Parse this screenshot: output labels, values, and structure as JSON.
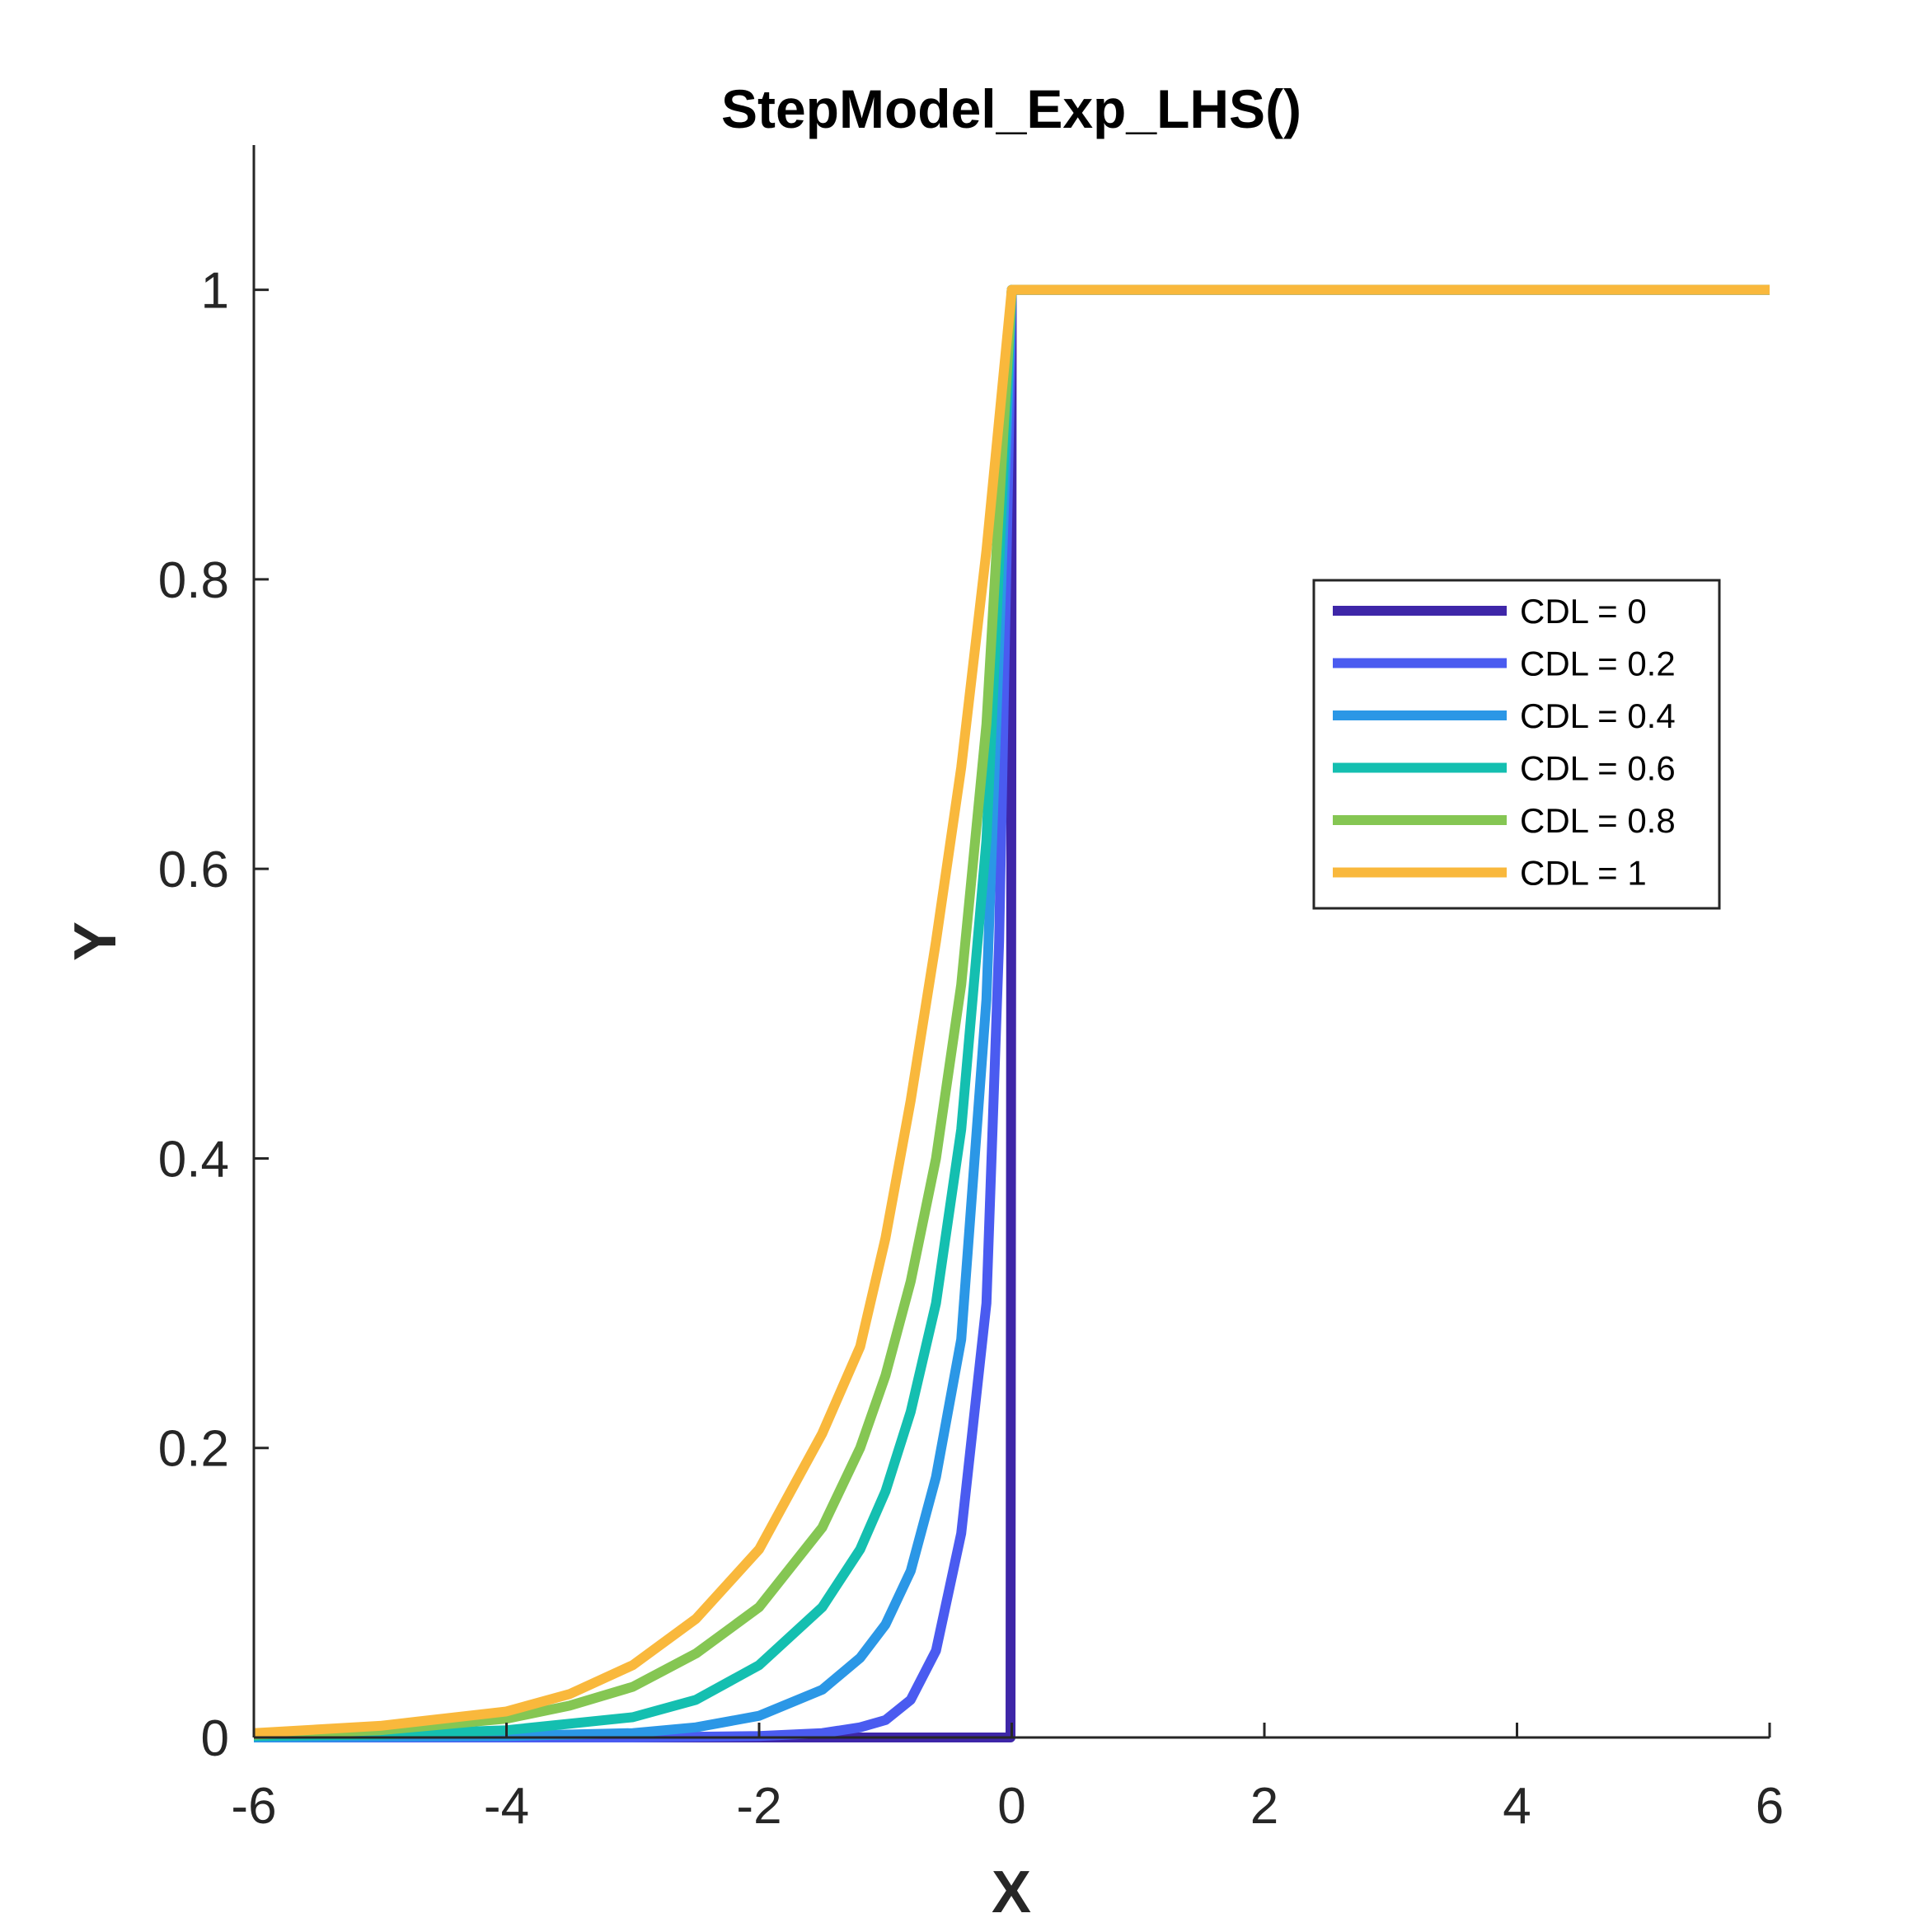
{
  "chart_data": {
    "type": "line",
    "title": "StepModel_Exp_LHS()",
    "xlabel": "X",
    "ylabel": "Y",
    "xlim": [
      -6,
      6
    ],
    "ylim": [
      0,
      1.1
    ],
    "xticks": [
      "-6",
      "-4",
      "-2",
      "0",
      "2",
      "4",
      "6"
    ],
    "yticks": [
      "0",
      "0.2",
      "0.4",
      "0.6",
      "0.8",
      "1"
    ],
    "xtick_values": [
      -6,
      -4,
      -2,
      0,
      2,
      4,
      6
    ],
    "ytick_values": [
      0,
      0.2,
      0.4,
      0.6,
      0.8,
      1
    ],
    "grid": false,
    "legend_position": "top-right",
    "series": [
      {
        "name": "CDL = 0",
        "color": "#3e26a8",
        "x": [
          -6,
          -5,
          -4,
          -3,
          -2,
          -1,
          -0.5,
          -0.01,
          0,
          0.01,
          2,
          4,
          6
        ],
        "y": [
          0,
          0,
          0,
          0,
          0,
          0,
          0,
          0,
          1,
          1,
          1,
          1,
          1
        ]
      },
      {
        "name": "CDL = 0.2",
        "color": "#4a5bf0",
        "x": [
          -6,
          -3,
          -2,
          -1.5,
          -1.2,
          -1,
          -0.8,
          -0.6,
          -0.4,
          -0.2,
          -0.1,
          0,
          1,
          2,
          3,
          4,
          5,
          6
        ],
        "y": [
          0,
          0,
          0.001,
          0.003,
          0.007,
          0.012,
          0.026,
          0.06,
          0.141,
          0.3,
          0.55,
          1,
          1,
          1,
          1,
          1,
          1,
          1
        ]
      },
      {
        "name": "CDL = 0.4",
        "color": "#2b97e6",
        "x": [
          -6,
          -4,
          -3,
          -2.5,
          -2,
          -1.5,
          -1.2,
          -1,
          -0.8,
          -0.6,
          -0.4,
          -0.2,
          0,
          1,
          2,
          3,
          4,
          5,
          6
        ],
        "y": [
          0,
          0.001,
          0.003,
          0.007,
          0.015,
          0.033,
          0.055,
          0.078,
          0.115,
          0.18,
          0.275,
          0.51,
          1,
          1,
          1,
          1,
          1,
          1,
          1
        ]
      },
      {
        "name": "CDL = 0.6",
        "color": "#14bfb0",
        "x": [
          -6,
          -5,
          -4,
          -3,
          -2.5,
          -2,
          -1.5,
          -1.2,
          -1,
          -0.8,
          -0.6,
          -0.4,
          -0.2,
          0,
          1,
          2,
          3,
          4,
          5,
          6
        ],
        "y": [
          0.001,
          0.002,
          0.005,
          0.014,
          0.026,
          0.05,
          0.09,
          0.13,
          0.17,
          0.225,
          0.3,
          0.42,
          0.62,
          1,
          1,
          1,
          1,
          1,
          1,
          1
        ]
      },
      {
        "name": "CDL = 0.8",
        "color": "#85c653",
        "x": [
          -6,
          -5,
          -4,
          -3.5,
          -3,
          -2.5,
          -2,
          -1.5,
          -1.2,
          -1,
          -0.8,
          -0.6,
          -0.4,
          -0.2,
          0,
          1,
          2,
          3,
          4,
          5,
          6
        ],
        "y": [
          0.002,
          0.005,
          0.013,
          0.022,
          0.035,
          0.058,
          0.09,
          0.145,
          0.2,
          0.25,
          0.315,
          0.4,
          0.52,
          0.7,
          1,
          1,
          1,
          1,
          1,
          1,
          1
        ]
      },
      {
        "name": "CDL = 1",
        "color": "#f9b83c",
        "x": [
          -6,
          -5,
          -4,
          -3.5,
          -3,
          -2.5,
          -2,
          -1.5,
          -1.2,
          -1,
          -0.8,
          -0.6,
          -0.4,
          -0.2,
          0,
          1,
          2,
          3,
          4,
          5,
          6
        ],
        "y": [
          0.003,
          0.008,
          0.018,
          0.03,
          0.05,
          0.082,
          0.13,
          0.21,
          0.27,
          0.345,
          0.44,
          0.55,
          0.67,
          0.82,
          1,
          1,
          1,
          1,
          1,
          1,
          1
        ]
      }
    ]
  }
}
